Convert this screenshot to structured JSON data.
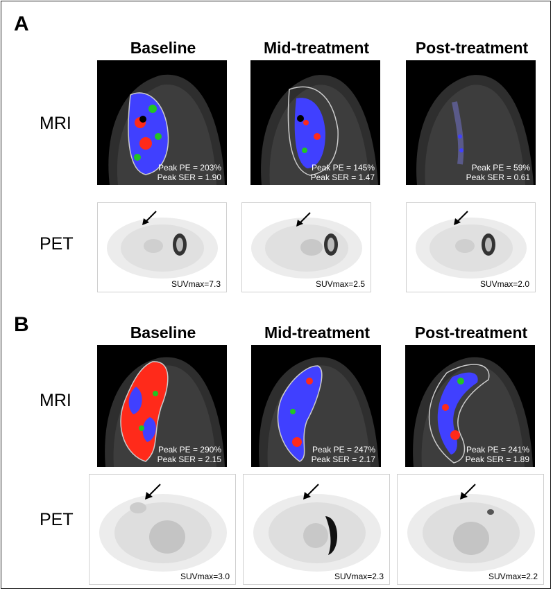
{
  "panels": [
    {
      "letter": "A",
      "columns": [
        "Baseline",
        "Mid-treatment",
        "Post-treatment"
      ],
      "rows": [
        "MRI",
        "PET"
      ],
      "mri": [
        {
          "pe": "Peak PE = 203%",
          "ser": "Peak SER = 1.90"
        },
        {
          "pe": "Peak PE = 145%",
          "ser": "Peak SER = 1.47"
        },
        {
          "pe": "Peak PE = 59%",
          "ser": "Peak SER = 0.61"
        }
      ],
      "pet": [
        {
          "suv": "SUVmax=7.3"
        },
        {
          "suv": "SUVmax=2.5"
        },
        {
          "suv": "SUVmax=2.0"
        }
      ]
    },
    {
      "letter": "B",
      "columns": [
        "Baseline",
        "Mid-treatment",
        "Post-treatment"
      ],
      "rows": [
        "MRI",
        "PET"
      ],
      "mri": [
        {
          "pe": "Peak PE = 290%",
          "ser": "Peak SER = 2.15"
        },
        {
          "pe": "Peak PE = 247%",
          "ser": "Peak SER = 2.17"
        },
        {
          "pe": "Peak PE = 241%",
          "ser": "Peak SER = 1.89"
        }
      ],
      "pet": [
        {
          "suv": "SUVmax=3.0"
        },
        {
          "suv": "SUVmax=2.3"
        },
        {
          "suv": "SUVmax=2.2"
        }
      ]
    }
  ],
  "colors": {
    "low": "#3b3bff",
    "mid": "#22c522",
    "high": "#ff2a1a"
  }
}
